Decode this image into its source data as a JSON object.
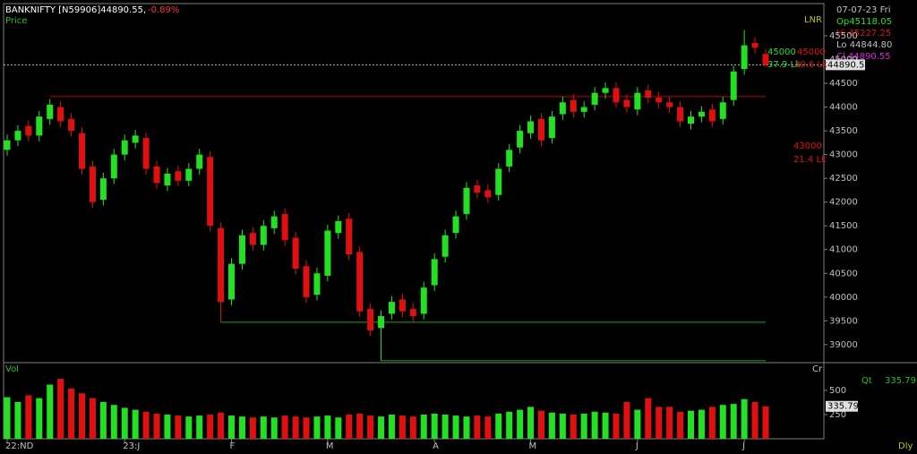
{
  "header": {
    "symbol": "BANKNIFTY [N59906]44890.55,",
    "change": "-0.89%",
    "pane_label": "Price",
    "scale_label": "LNR",
    "period": "Dly"
  },
  "info": {
    "date": "07-07-23 Fri",
    "open": "Op45118.05",
    "high": "Hi 45227.25",
    "low": "Lo 44844.80",
    "close": "Cl 44890.55"
  },
  "chart_data": [
    {
      "type": "candlestick",
      "up_color": "#22e022",
      "down_color": "#e01010",
      "categories": [
        "22:ND",
        null,
        null,
        null,
        null,
        null,
        null,
        null,
        null,
        null,
        null,
        "23:J",
        null,
        null,
        null,
        null,
        null,
        null,
        null,
        null,
        null,
        "F",
        null,
        null,
        null,
        null,
        null,
        null,
        null,
        null,
        "M",
        null,
        null,
        null,
        null,
        null,
        null,
        null,
        null,
        null,
        "A",
        null,
        null,
        null,
        null,
        null,
        null,
        null,
        null,
        "M",
        null,
        null,
        null,
        null,
        null,
        null,
        null,
        null,
        null,
        "J",
        null,
        null,
        null,
        null,
        null,
        null,
        null,
        null,
        null,
        "J",
        null,
        null
      ],
      "open": [
        43100,
        43300,
        43600,
        43400,
        43750,
        44000,
        43750,
        43450,
        42750,
        42050,
        42500,
        43000,
        43250,
        43350,
        42750,
        42350,
        42650,
        42450,
        42700,
        42950,
        41450,
        39950,
        40700,
        41350,
        41100,
        41450,
        41750,
        41250,
        40650,
        40050,
        40450,
        41350,
        41650,
        40950,
        39750,
        39350,
        39650,
        39950,
        39750,
        39650,
        40250,
        40850,
        41350,
        41750,
        42350,
        42250,
        42150,
        42750,
        43150,
        43450,
        43750,
        43350,
        43850,
        44150,
        43900,
        44050,
        44300,
        44400,
        44150,
        43950,
        44350,
        44200,
        44100,
        44000,
        43650,
        43800,
        43950,
        43750,
        44150,
        44800,
        45350,
        45118.05
      ],
      "high": [
        43420,
        43620,
        43720,
        43920,
        44170,
        44120,
        43870,
        43570,
        42870,
        42620,
        43120,
        43420,
        43520,
        43470,
        42870,
        42720,
        42770,
        42820,
        43120,
        43070,
        41570,
        40820,
        41420,
        41470,
        41620,
        41820,
        41870,
        41370,
        40770,
        40620,
        41520,
        41720,
        41770,
        41070,
        39870,
        39720,
        40020,
        40070,
        39870,
        40320,
        40920,
        41420,
        41820,
        42420,
        42470,
        42370,
        42820,
        43220,
        43620,
        43820,
        43870,
        43920,
        44220,
        44270,
        44120,
        44420,
        44520,
        44520,
        44270,
        44420,
        44470,
        44320,
        44220,
        44120,
        43920,
        44020,
        44070,
        44220,
        44870,
        45620,
        45470,
        45227.25
      ],
      "low": [
        42980,
        43180,
        43280,
        43280,
        43630,
        43580,
        43380,
        42580,
        41880,
        41930,
        42380,
        42880,
        43130,
        42580,
        42280,
        42230,
        42330,
        42330,
        42580,
        41380,
        39470,
        39830,
        40580,
        40980,
        40980,
        41330,
        41080,
        40480,
        39880,
        39930,
        40330,
        41230,
        40780,
        39580,
        39180,
        38660,
        39530,
        39580,
        39480,
        39530,
        40130,
        40730,
        41230,
        41630,
        42080,
        41980,
        42030,
        42630,
        43030,
        43330,
        43180,
        43230,
        43730,
        43780,
        43780,
        43930,
        44180,
        43980,
        43880,
        43830,
        44080,
        43980,
        43880,
        43580,
        43530,
        43680,
        43580,
        43630,
        44030,
        44680,
        45130,
        44844.8
      ],
      "close": [
        43300,
        43500,
        43400,
        43800,
        44050,
        43700,
        43500,
        42700,
        42000,
        42500,
        43000,
        43300,
        43400,
        42700,
        42400,
        42600,
        42450,
        42700,
        43000,
        41500,
        39900,
        40700,
        41300,
        41100,
        41500,
        41700,
        41200,
        40600,
        40000,
        40500,
        41400,
        41600,
        40900,
        39700,
        39300,
        39600,
        39900,
        39700,
        39600,
        40200,
        40800,
        41300,
        41700,
        42300,
        42200,
        42100,
        42700,
        43100,
        43500,
        43700,
        43300,
        43800,
        44100,
        43900,
        44000,
        44300,
        44400,
        44100,
        44000,
        44300,
        44200,
        44100,
        44000,
        43700,
        43800,
        43900,
        43700,
        44100,
        44750,
        45300,
        45250,
        44890.55
      ],
      "ylim": [
        38620,
        46160
      ],
      "yticks": [
        39000,
        39500,
        40000,
        40500,
        41000,
        41500,
        42000,
        42500,
        43000,
        43500,
        44000,
        44500,
        45000,
        45500
      ],
      "levels": [
        {
          "value": 44220,
          "color": "#c00000",
          "from": 4
        },
        {
          "value": 39470,
          "color": "#1fa01f",
          "from": 20
        },
        {
          "value": 38660,
          "color": "#1fa01f",
          "from": 35
        }
      ],
      "last_price_label": "44890.5",
      "annotations": [
        {
          "text": "45000",
          "color": "#22e022"
        },
        {
          "text": "45000",
          "color": "#e01010"
        },
        {
          "text": "37.9 Lk",
          "color": "#22e022"
        },
        {
          "text": "30.6 Lk",
          "color": "#e01010"
        },
        {
          "text": "43000",
          "color": "#e01010"
        },
        {
          "text": "21.4 Lk",
          "color": "#e01010"
        }
      ]
    },
    {
      "type": "bar",
      "pane_label": "Vol",
      "scale_label": "Cr",
      "last_label": "335.79",
      "qty_label": "Qt",
      "qty_value": "335.79",
      "values": [
        430,
        380,
        450,
        420,
        560,
        620,
        520,
        470,
        420,
        380,
        350,
        320,
        300,
        280,
        260,
        250,
        240,
        230,
        240,
        250,
        270,
        240,
        230,
        220,
        230,
        220,
        240,
        230,
        220,
        230,
        240,
        220,
        250,
        260,
        240,
        230,
        250,
        240,
        230,
        250,
        260,
        250,
        240,
        230,
        240,
        230,
        260,
        280,
        300,
        330,
        290,
        270,
        260,
        250,
        260,
        280,
        270,
        260,
        380,
        300,
        420,
        330,
        330,
        280,
        290,
        300,
        330,
        350,
        360,
        410,
        380,
        335.79
      ],
      "ylim": [
        0,
        787
      ],
      "yticks": [
        250,
        500
      ]
    }
  ]
}
